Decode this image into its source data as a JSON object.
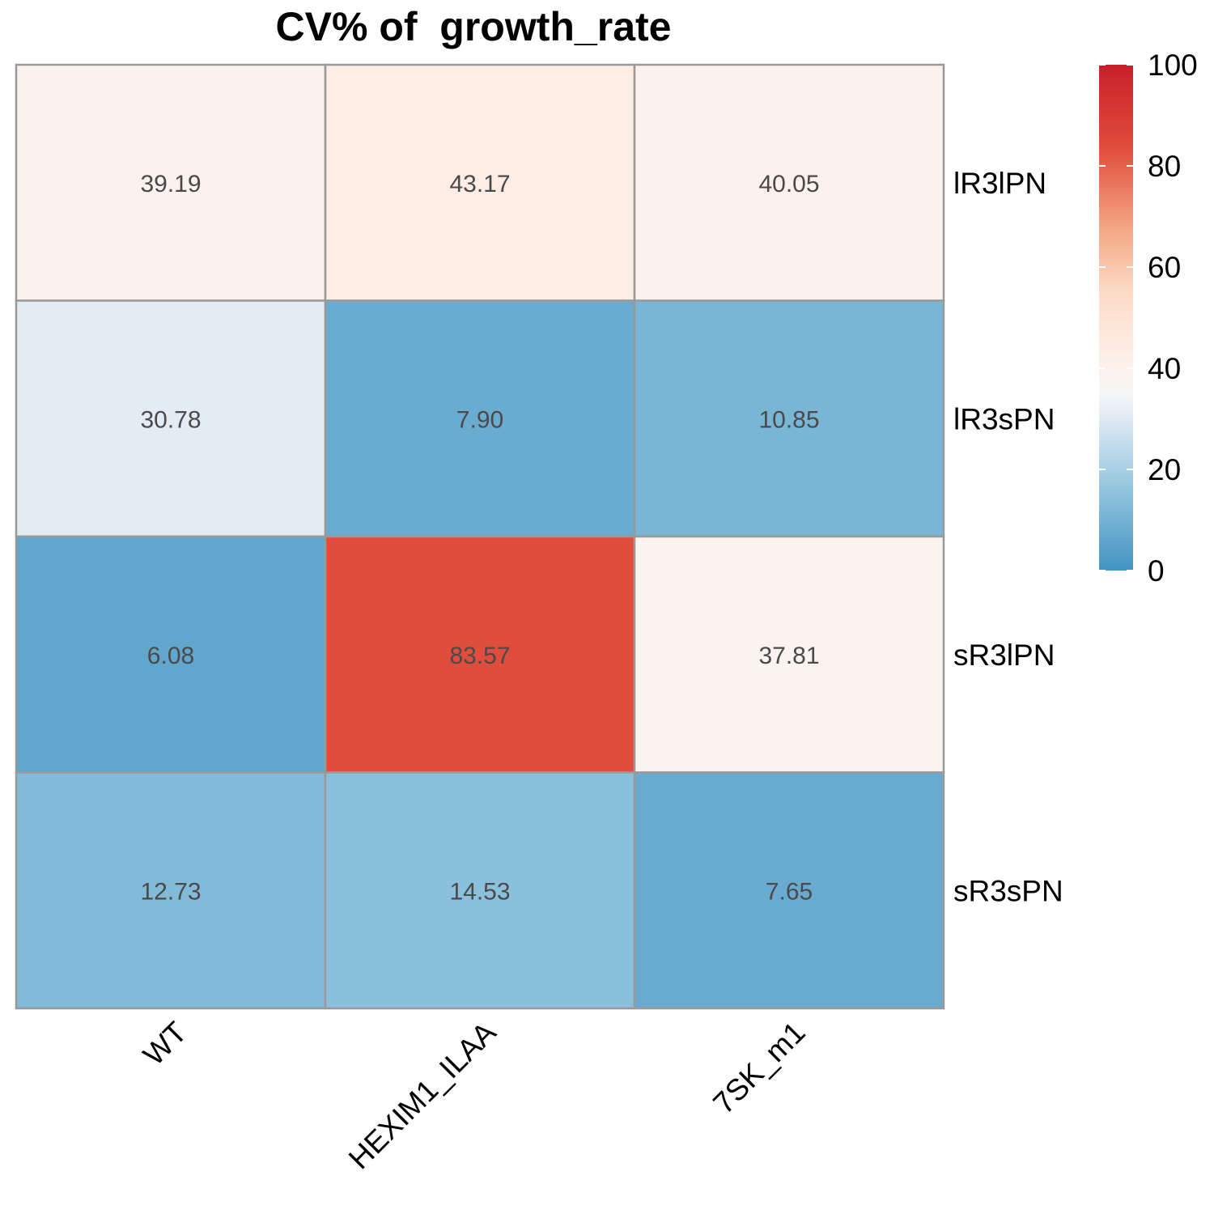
{
  "chart_data": {
    "type": "heatmap",
    "title": "CV% of  growth_rate",
    "columns": [
      "WT",
      "HEXIM1_ILAA",
      "7SK_m1"
    ],
    "rows": [
      "lR3lPN",
      "lR3sPN",
      "sR3lPN",
      "sR3sPN"
    ],
    "values": [
      [
        39.19,
        43.17,
        40.05
      ],
      [
        30.78,
        7.9,
        10.85
      ],
      [
        6.08,
        83.57,
        37.81
      ],
      [
        12.73,
        14.53,
        7.65
      ]
    ],
    "value_labels": [
      [
        "39.19",
        "43.17",
        "40.05"
      ],
      [
        "30.78",
        "7.90",
        "10.85"
      ],
      [
        "6.08",
        "83.57",
        "37.81"
      ],
      [
        "12.73",
        "14.53",
        "7.65"
      ]
    ],
    "color_scale": {
      "range": [
        0,
        100
      ],
      "ticks": [
        "0",
        "20",
        "40",
        "60",
        "80",
        "100"
      ],
      "tick_values": [
        0,
        20,
        40,
        60,
        80,
        100
      ],
      "colors": [
        "#4393c3",
        "#92c5de",
        "#d1e5f0",
        "#f7f7f7",
        "#fddbc7",
        "#f4a582",
        "#d6604d",
        "#b2182b"
      ]
    },
    "grid": true,
    "legend_position": "right"
  }
}
